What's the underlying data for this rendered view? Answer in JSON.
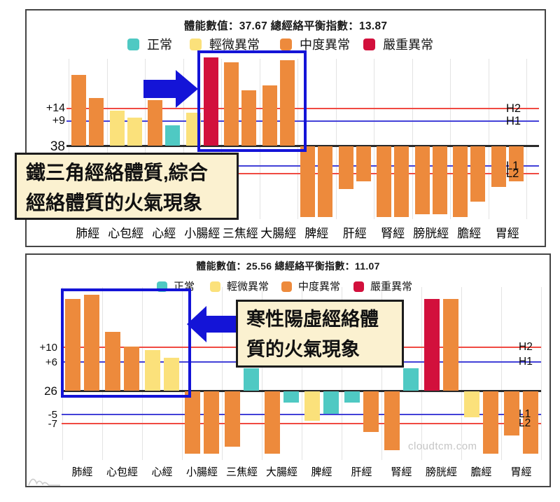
{
  "watermark": "cloudtcm.com",
  "colors": {
    "normal": "#4FC9C3",
    "mild": "#FBE17B",
    "moderate": "#ED8A3C",
    "severe": "#D2103C",
    "line_red": "#F04A42",
    "line_blue": "#4341D8",
    "highlight_blue": "#1414D7",
    "annotation_bg": "#FBF1D0"
  },
  "chart_data": [
    {
      "type": "bar",
      "title": "體能數值：37.67 總經絡平衡指數：13.87",
      "legend": [
        {
          "label": "正常",
          "level": "normal"
        },
        {
          "label": "輕微異常",
          "level": "mild"
        },
        {
          "label": "中度異常",
          "level": "moderate"
        },
        {
          "label": "嚴重異常",
          "level": "severe"
        }
      ],
      "y_axis_labels": [
        "+14",
        "+9",
        "38"
      ],
      "right_labels": [
        "H2",
        "H1",
        "L1",
        "L2"
      ],
      "categories": [
        "肺經",
        "心包經",
        "心經",
        "小腸經",
        "三焦經",
        "大腸經",
        "脾經",
        "肝經",
        "腎經",
        "膀胱經",
        "膽經",
        "胃經"
      ],
      "series": [
        {
          "category": "肺經",
          "bars": [
            {
              "value": 28,
              "level": "moderate"
            },
            {
              "value": 19,
              "level": "moderate"
            }
          ]
        },
        {
          "category": "心包經",
          "bars": [
            {
              "value": 14,
              "level": "mild"
            },
            {
              "value": 11,
              "level": "mild"
            }
          ]
        },
        {
          "category": "心經",
          "bars": [
            {
              "value": 18,
              "level": "moderate"
            },
            {
              "value": 8,
              "level": "normal"
            }
          ]
        },
        {
          "category": "小腸經",
          "bars": [
            {
              "value": 13,
              "level": "mild"
            },
            {
              "value": 35,
              "level": "severe"
            }
          ]
        },
        {
          "category": "三焦經",
          "bars": [
            {
              "value": 33,
              "level": "moderate"
            },
            {
              "value": 22,
              "level": "moderate"
            }
          ]
        },
        {
          "category": "大腸經",
          "bars": [
            {
              "value": 24,
              "level": "moderate"
            },
            {
              "value": 34,
              "level": "moderate"
            }
          ]
        },
        {
          "category": "脾經",
          "bars": [
            {
              "value": -28,
              "level": "moderate"
            },
            {
              "value": -28,
              "level": "moderate"
            }
          ]
        },
        {
          "category": "肝經",
          "bars": [
            {
              "value": -17,
              "level": "moderate"
            },
            {
              "value": -14,
              "level": "moderate"
            }
          ]
        },
        {
          "category": "腎經",
          "bars": [
            {
              "value": -28,
              "level": "moderate"
            },
            {
              "value": -28,
              "level": "moderate"
            }
          ]
        },
        {
          "category": "膀胱經",
          "bars": [
            {
              "value": -27,
              "level": "moderate"
            },
            {
              "value": -27,
              "level": "moderate"
            }
          ]
        },
        {
          "category": "膽經",
          "bars": [
            {
              "value": -28,
              "level": "moderate"
            },
            {
              "value": -22,
              "level": "moderate"
            }
          ]
        },
        {
          "category": "胃經",
          "bars": [
            {
              "value": -16,
              "level": "moderate"
            },
            {
              "value": -14,
              "level": "moderate"
            }
          ]
        }
      ],
      "highlight_categories": [
        "小腸經",
        "三焦經",
        "大腸經"
      ],
      "annotation": {
        "lines": [
          "鐵三角經絡體質,綜合",
          "經絡體質的火氣現象"
        ]
      }
    },
    {
      "type": "bar",
      "title": "體能數值：25.56 總經絡平衡指數：11.07",
      "legend": [
        {
          "label": "正常",
          "level": "normal"
        },
        {
          "label": "輕微異常",
          "level": "mild"
        },
        {
          "label": "中度異常",
          "level": "moderate"
        },
        {
          "label": "嚴重異常",
          "level": "severe"
        }
      ],
      "y_axis_labels": [
        "+10",
        "+6",
        "26",
        "-5",
        "-7"
      ],
      "right_labels": [
        "H2",
        "H1",
        "L1",
        "L2"
      ],
      "categories": [
        "肺經",
        "心包經",
        "心經",
        "小腸經",
        "三焦經",
        "大腸經",
        "脾經",
        "肝經",
        "腎經",
        "膀胱經",
        "膽經",
        "胃經"
      ],
      "series": [
        {
          "category": "肺經",
          "bars": [
            {
              "value": 25,
              "level": "moderate"
            },
            {
              "value": 26,
              "level": "moderate"
            }
          ]
        },
        {
          "category": "心包經",
          "bars": [
            {
              "value": 16,
              "level": "moderate"
            },
            {
              "value": 12,
              "level": "moderate"
            }
          ]
        },
        {
          "category": "心經",
          "bars": [
            {
              "value": 11,
              "level": "mild"
            },
            {
              "value": 9,
              "level": "mild"
            }
          ]
        },
        {
          "category": "小腸經",
          "bars": [
            {
              "value": -17,
              "level": "moderate"
            },
            {
              "value": -17,
              "level": "moderate"
            }
          ]
        },
        {
          "category": "三焦經",
          "bars": [
            {
              "value": -15,
              "level": "moderate"
            },
            {
              "value": 6,
              "level": "normal"
            }
          ]
        },
        {
          "category": "大腸經",
          "bars": [
            {
              "value": -17,
              "level": "moderate"
            },
            {
              "value": -3,
              "level": "normal"
            }
          ]
        },
        {
          "category": "脾經",
          "bars": [
            {
              "value": -8,
              "level": "mild"
            },
            {
              "value": -6,
              "level": "normal"
            }
          ]
        },
        {
          "category": "肝經",
          "bars": [
            {
              "value": -3,
              "level": "normal"
            },
            {
              "value": -11,
              "level": "moderate"
            }
          ]
        },
        {
          "category": "腎經",
          "bars": [
            {
              "value": -16,
              "level": "moderate"
            },
            {
              "value": 6,
              "level": "normal"
            }
          ]
        },
        {
          "category": "膀胱經",
          "bars": [
            {
              "value": 25,
              "level": "severe"
            },
            {
              "value": 25,
              "level": "moderate"
            }
          ]
        },
        {
          "category": "膽經",
          "bars": [
            {
              "value": -7,
              "level": "mild"
            },
            {
              "value": -17,
              "level": "moderate"
            }
          ]
        },
        {
          "category": "胃經",
          "bars": [
            {
              "value": -12,
              "level": "moderate"
            },
            {
              "value": -17,
              "level": "moderate"
            }
          ]
        }
      ],
      "highlight_categories": [
        "肺經",
        "心包經",
        "心經"
      ],
      "annotation": {
        "lines": [
          "寒性陽虛經絡體",
          "質的火氣現象"
        ]
      }
    }
  ]
}
